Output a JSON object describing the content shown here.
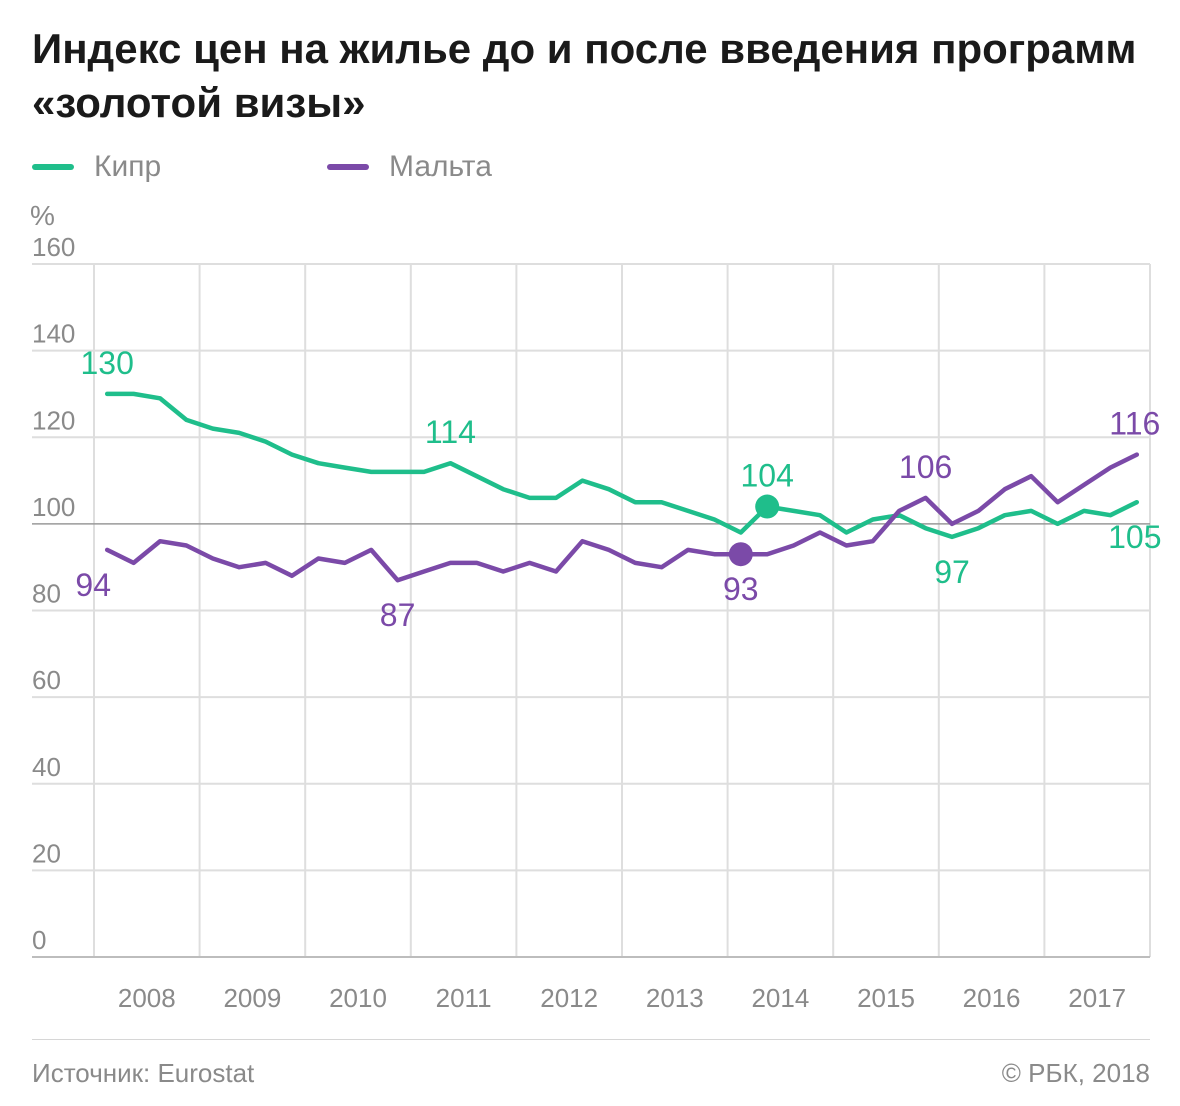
{
  "title": "Индекс цен на жилье до и после введения программ «золотой визы»",
  "unit_label": "%",
  "source": "Источник: Eurostat",
  "copyright": "© РБК, 2018",
  "colors": {
    "cyprus": "#1fbe8b",
    "malta": "#7b4aa8",
    "grid": "#dedede",
    "ref_line": "#9a9a9a",
    "tick_text": "#8a8a8a"
  },
  "chart_data": {
    "type": "line",
    "x_labels": [
      "2008",
      "2009",
      "2010",
      "2011",
      "2012",
      "2013",
      "2014",
      "2015",
      "2016",
      "2017"
    ],
    "x_unit": "quarter",
    "ylim": [
      0,
      160
    ],
    "y_ticks": [
      0,
      20,
      40,
      60,
      80,
      100,
      120,
      140,
      160
    ],
    "reference_line": 100,
    "grid": true,
    "legend_position": "top-left",
    "series": [
      {
        "name": "Кипр",
        "color": "#1fbe8b",
        "values": [
          130,
          130,
          129,
          124,
          122,
          121,
          119,
          116,
          114,
          113,
          112,
          112,
          112,
          114,
          111,
          108,
          106,
          106,
          110,
          108,
          105,
          105,
          103,
          101,
          98,
          104,
          103,
          102,
          98,
          101,
          102,
          99,
          97,
          99,
          102,
          103,
          100,
          103,
          102,
          105
        ],
        "labels": [
          {
            "index": 0,
            "text": "130",
            "pos": "above"
          },
          {
            "index": 13,
            "text": "114",
            "pos": "above"
          },
          {
            "index": 25,
            "text": "104",
            "pos": "above"
          },
          {
            "index": 32,
            "text": "97",
            "pos": "below"
          },
          {
            "index": 39,
            "text": "105",
            "pos": "below"
          }
        ],
        "marker_index": 25
      },
      {
        "name": "Мальта",
        "color": "#7b4aa8",
        "values": [
          94,
          91,
          96,
          95,
          92,
          90,
          91,
          88,
          92,
          91,
          94,
          87,
          89,
          91,
          91,
          89,
          91,
          89,
          96,
          94,
          91,
          90,
          94,
          93,
          93,
          93,
          95,
          98,
          95,
          96,
          103,
          106,
          100,
          103,
          108,
          111,
          105,
          109,
          113,
          116
        ],
        "labels": [
          {
            "index": 0,
            "text": "94",
            "pos": "below"
          },
          {
            "index": 11,
            "text": "87",
            "pos": "below"
          },
          {
            "index": 24,
            "text": "93",
            "pos": "below"
          },
          {
            "index": 31,
            "text": "106",
            "pos": "above"
          },
          {
            "index": 39,
            "text": "116",
            "pos": "above"
          }
        ],
        "marker_index": 24
      }
    ]
  }
}
